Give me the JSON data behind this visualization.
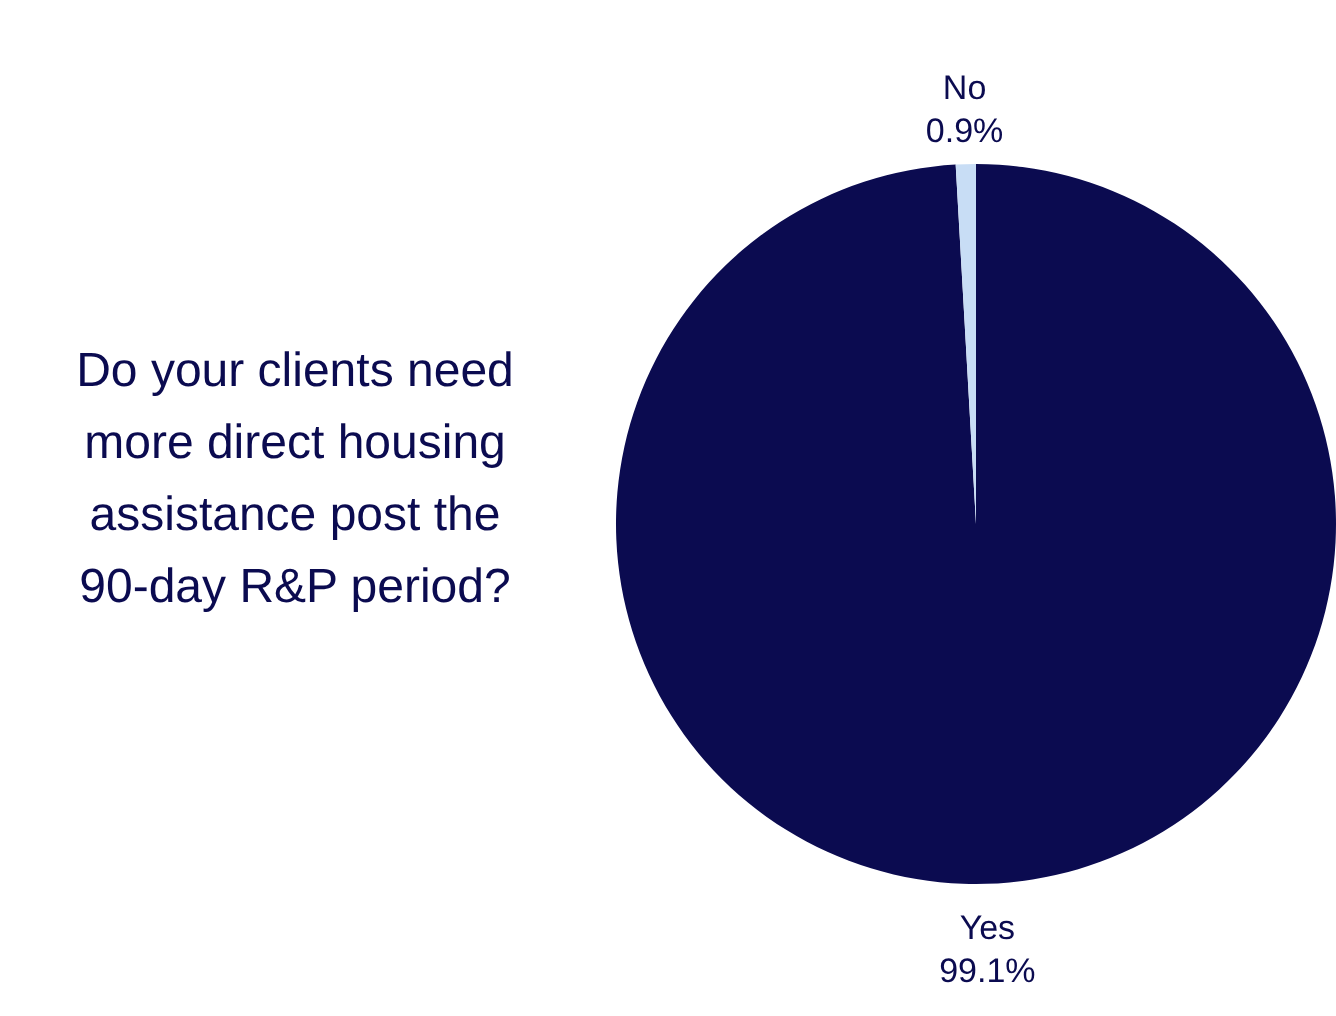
{
  "chart_data": {
    "type": "pie",
    "title": "Do your clients need more direct housing assistance post the 90-day R&P period?",
    "categories": [
      "Yes",
      "No"
    ],
    "values": [
      99.1,
      0.9
    ],
    "colors": [
      "#0b0b50",
      "#c8ddf5"
    ],
    "value_labels": [
      "99.1%",
      "0.9%"
    ],
    "legend": false
  }
}
